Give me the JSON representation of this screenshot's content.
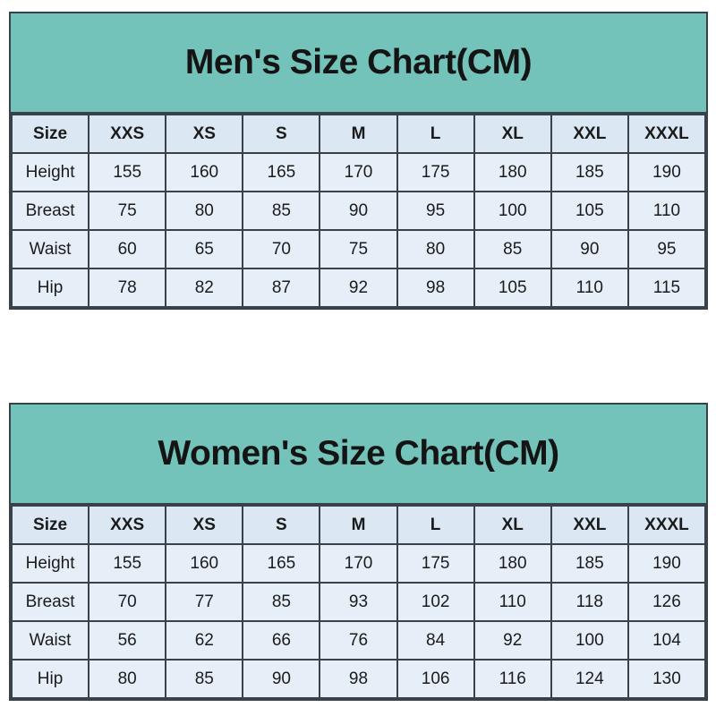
{
  "colors": {
    "title_bar_teal": "#74c3bb",
    "header_row_bg": "#dbe7f2",
    "cell_bg": "#e6eff8",
    "border": "#39424a",
    "text": "#1b1b1b",
    "page_bg": "#ffffff"
  },
  "tables": [
    {
      "title": "Men's Size Chart(CM)",
      "columns": [
        "Size",
        "XXS",
        "XS",
        "S",
        "M",
        "L",
        "XL",
        "XXL",
        "XXXL"
      ],
      "rows": [
        {
          "label": "Height",
          "values": [
            "155",
            "160",
            "165",
            "170",
            "175",
            "180",
            "185",
            "190"
          ]
        },
        {
          "label": "Breast",
          "values": [
            "75",
            "80",
            "85",
            "90",
            "95",
            "100",
            "105",
            "110"
          ]
        },
        {
          "label": "Waist",
          "values": [
            "60",
            "65",
            "70",
            "75",
            "80",
            "85",
            "90",
            "95"
          ]
        },
        {
          "label": "Hip",
          "values": [
            "78",
            "82",
            "87",
            "92",
            "98",
            "105",
            "110",
            "115"
          ]
        }
      ]
    },
    {
      "title": "Women's Size Chart(CM)",
      "columns": [
        "Size",
        "XXS",
        "XS",
        "S",
        "M",
        "L",
        "XL",
        "XXL",
        "XXXL"
      ],
      "rows": [
        {
          "label": "Height",
          "values": [
            "155",
            "160",
            "165",
            "170",
            "175",
            "180",
            "185",
            "190"
          ]
        },
        {
          "label": "Breast",
          "values": [
            "70",
            "77",
            "85",
            "93",
            "102",
            "110",
            "118",
            "126"
          ]
        },
        {
          "label": "Waist",
          "values": [
            "56",
            "62",
            "66",
            "76",
            "84",
            "92",
            "100",
            "104"
          ]
        },
        {
          "label": "Hip",
          "values": [
            "80",
            "85",
            "90",
            "98",
            "106",
            "116",
            "124",
            "130"
          ]
        }
      ]
    }
  ]
}
